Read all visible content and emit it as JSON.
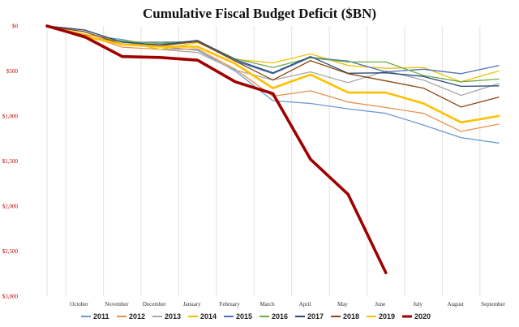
{
  "chart_data": {
    "type": "line",
    "title": "Cumulative Fiscal Budget Deficit ($BN)",
    "xlabel": "",
    "ylabel": "",
    "categories": [
      "",
      "October",
      "November",
      "December",
      "January",
      "February",
      "March",
      "April",
      "May",
      "June",
      "July",
      "August",
      "September"
    ],
    "ylim": [
      0,
      3000
    ],
    "y_axis_inverted": true,
    "y_tick_values": [
      0,
      500,
      1000,
      1500,
      2000,
      2500,
      3000
    ],
    "y_tick_labels": [
      "$0",
      "$500",
      "$1,000",
      "$1,500",
      "$2,000",
      "$2,500",
      "$3,000"
    ],
    "grid": "vertical lines at category boundaries",
    "legend_position": "bottom",
    "series": [
      {
        "name": "2011",
        "color": "#6a9bd1",
        "values": [
          0,
          98,
          150,
          230,
          270,
          500,
          830,
          860,
          920,
          970,
          1100,
          1240,
          1300
        ]
      },
      {
        "name": "2012",
        "color": "#e8904a",
        "values": [
          0,
          98,
          235,
          260,
          255,
          480,
          780,
          720,
          845,
          905,
          970,
          1170,
          1090
        ]
      },
      {
        "name": "2013",
        "color": "#a8a8a8",
        "values": [
          0,
          120,
          170,
          260,
          295,
          490,
          600,
          510,
          630,
          500,
          600,
          770,
          640
        ]
      },
      {
        "name": "2014",
        "color": "#f0c000",
        "values": [
          0,
          90,
          170,
          260,
          185,
          370,
          410,
          310,
          440,
          470,
          460,
          620,
          500
        ]
      },
      {
        "name": "2015",
        "color": "#4a74b8",
        "values": [
          0,
          45,
          180,
          180,
          175,
          390,
          530,
          350,
          390,
          510,
          480,
          530,
          440
        ]
      },
      {
        "name": "2016",
        "color": "#6fab46",
        "values": [
          0,
          136,
          165,
          195,
          165,
          365,
          460,
          355,
          400,
          400,
          550,
          620,
          590
        ]
      },
      {
        "name": "2017",
        "color": "#254a7a",
        "values": [
          0,
          45,
          180,
          210,
          160,
          375,
          520,
          340,
          525,
          520,
          560,
          670,
          665
        ]
      },
      {
        "name": "2018",
        "color": "#8b4513",
        "values": [
          0,
          65,
          200,
          220,
          175,
          390,
          600,
          385,
          530,
          610,
          690,
          900,
          790
        ]
      },
      {
        "name": "2019",
        "color": "#ffc000",
        "values": [
          0,
          115,
          205,
          230,
          230,
          420,
          690,
          540,
          740,
          740,
          860,
          1070,
          1000
        ]
      },
      {
        "name": "2020",
        "color": "#a00000",
        "values": [
          0,
          120,
          340,
          350,
          380,
          620,
          750,
          1480,
          1870,
          2740,
          null,
          null,
          null
        ]
      }
    ]
  }
}
